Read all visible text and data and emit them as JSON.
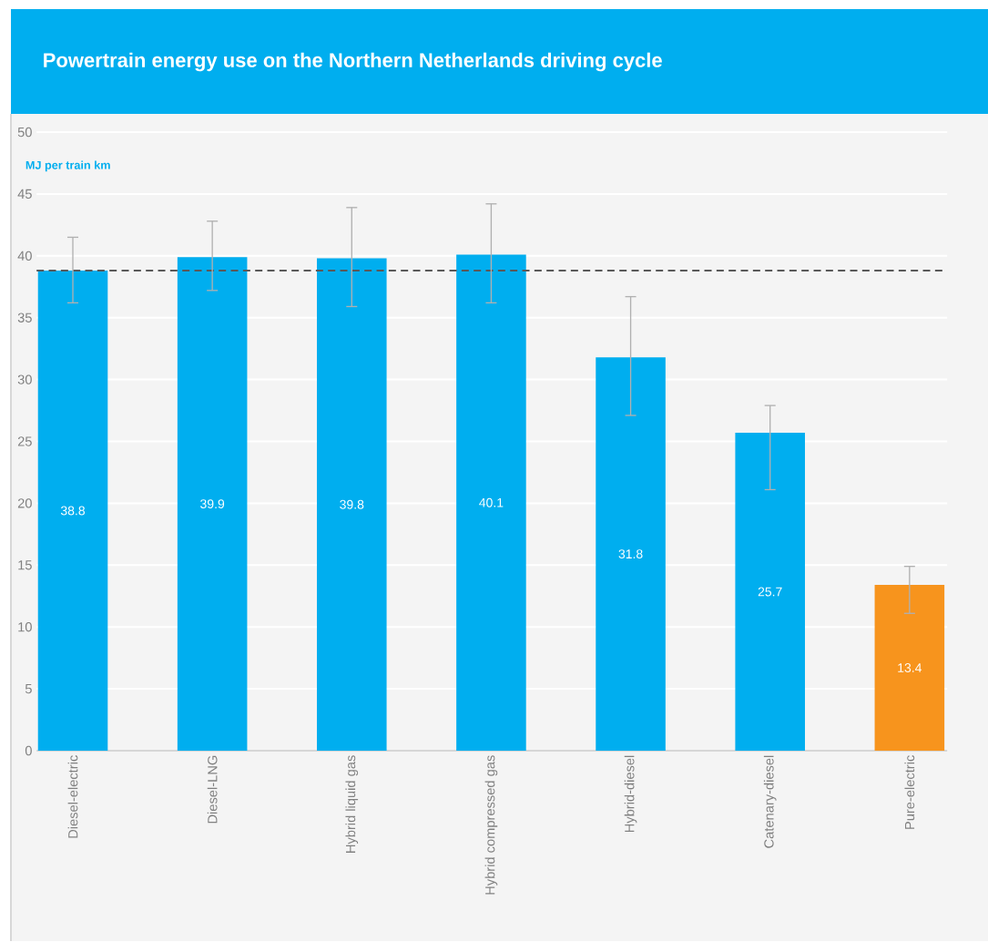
{
  "chart_data": {
    "type": "bar",
    "title": "Powertrain energy use on the Northern Netherlands driving cycle",
    "ylabel": "MJ per train km",
    "categories": [
      "Diesel-electric",
      "Diesel-LNG",
      "Hybrid liquid gas",
      "Hybrid compressed gas",
      "Hybrid-diesel",
      "Catenary-diesel",
      "Pure-electric"
    ],
    "values": [
      38.8,
      39.9,
      39.8,
      40.1,
      31.8,
      25.7,
      13.4
    ],
    "colors": [
      "#00aeef",
      "#00aeef",
      "#00aeef",
      "#00aeef",
      "#00aeef",
      "#00aeef",
      "#f7941d"
    ],
    "errors": [
      [
        36.2,
        41.5
      ],
      [
        37.2,
        42.8
      ],
      [
        35.9,
        43.9
      ],
      [
        36.2,
        44.2
      ],
      [
        27.1,
        36.7
      ],
      [
        21.1,
        27.9
      ],
      [
        11.1,
        14.9
      ]
    ],
    "data_labels": true,
    "ylim": [
      0,
      50
    ],
    "yticks": [
      0,
      5,
      10,
      15,
      20,
      25,
      30,
      35,
      40,
      45,
      50
    ],
    "grid": "y",
    "ref_lines": [
      {
        "axis": "y",
        "value": 38.8,
        "color": "#595959",
        "line_style": "dashed"
      }
    ]
  }
}
